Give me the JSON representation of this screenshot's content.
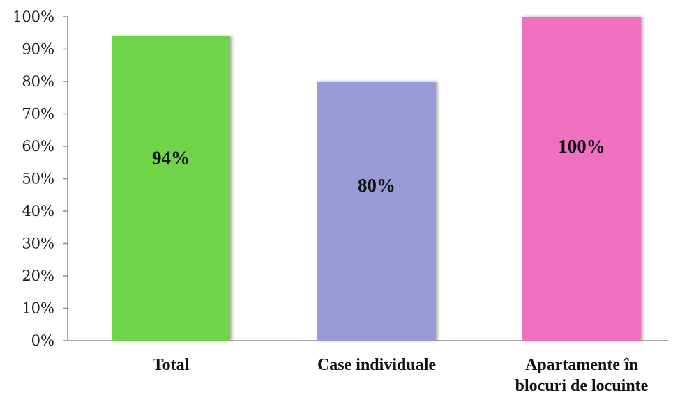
{
  "chart_data": {
    "type": "bar",
    "categories": [
      "Total",
      "Case individuale",
      "Apartamente în blocuri de locuinte"
    ],
    "category_lines": [
      [
        "Total"
      ],
      [
        "Case individuale"
      ],
      [
        "Apartamente în",
        "blocuri de locuinte"
      ]
    ],
    "values": [
      94,
      80,
      100
    ],
    "data_labels": [
      "94%",
      "80%",
      "100%"
    ],
    "colors": [
      "#6fd44a",
      "#9a9ad8",
      "#ee6fbf"
    ],
    "ylim": [
      0,
      100
    ],
    "yticks": [
      0,
      10,
      20,
      30,
      40,
      50,
      60,
      70,
      80,
      90,
      100
    ],
    "ytick_labels": [
      "0%",
      "10%",
      "20%",
      "30%",
      "40%",
      "50%",
      "60%",
      "70%",
      "80%",
      "90%",
      "100%"
    ],
    "legend": "none",
    "grid": false,
    "title": "",
    "xlabel": "",
    "ylabel": ""
  }
}
